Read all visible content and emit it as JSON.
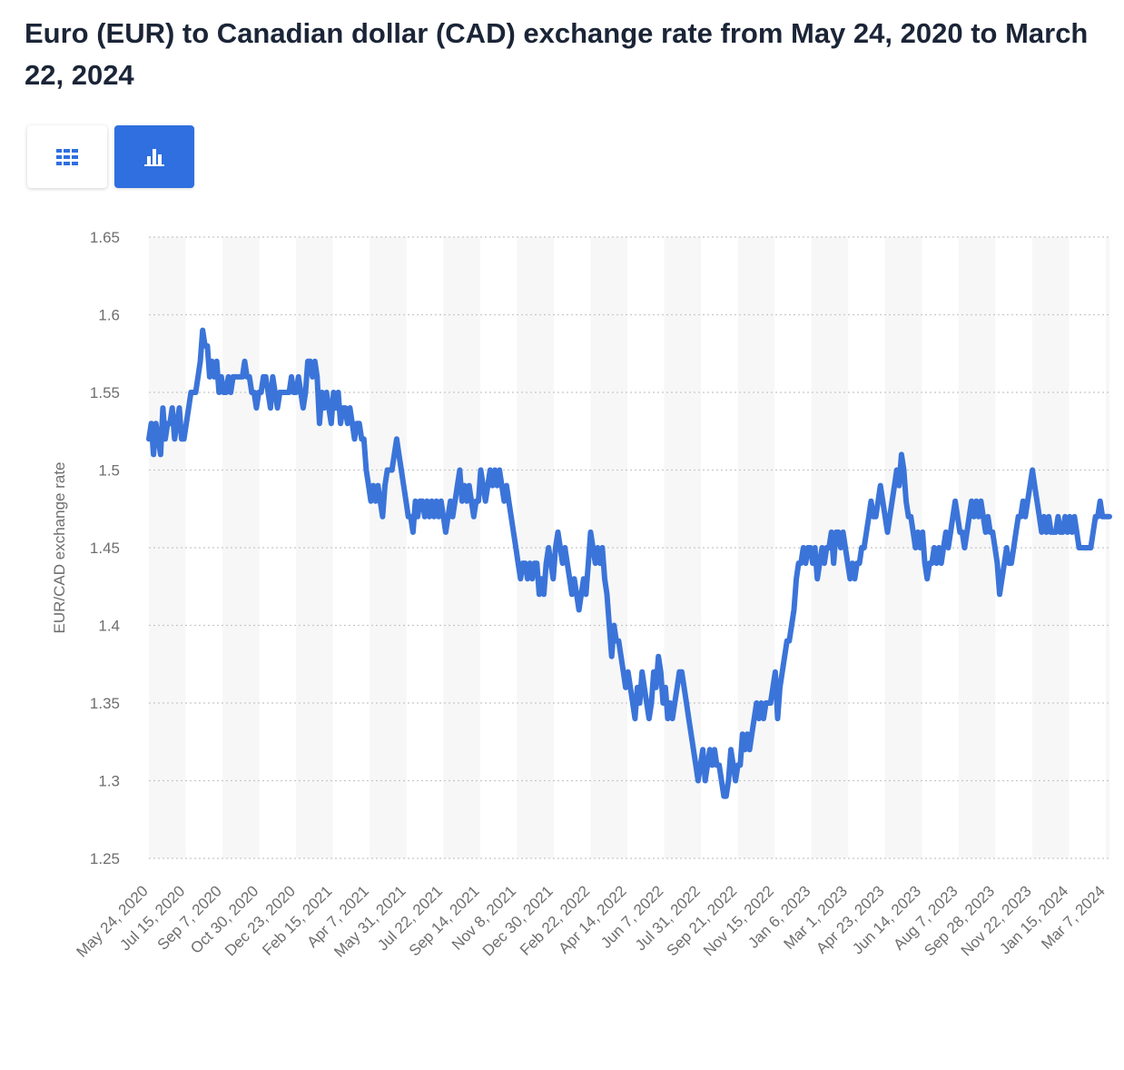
{
  "header": {
    "title": "Euro (EUR) to Canadian dollar (CAD) exchange rate from May 24, 2020 to March 22, 2024"
  },
  "toolbar": {
    "table_button_icon": "table-grid-icon",
    "chart_button_icon": "bar-chart-icon",
    "active_color": "#2f6fdf"
  },
  "chart_data": {
    "type": "line",
    "title": "Euro (EUR) to Canadian dollar (CAD) exchange rate from May 24, 2020 to March 22, 2024",
    "xlabel": "",
    "ylabel": "EUR/CAD exchange rate",
    "ylim": [
      1.25,
      1.65
    ],
    "yticks": [
      "1.25",
      "1.3",
      "1.35",
      "1.4",
      "1.45",
      "1.5",
      "1.55",
      "1.6",
      "1.65"
    ],
    "xticks": [
      "May 24, 2020",
      "Jul 15, 2020",
      "Sep 7, 2020",
      "Oct 30, 2020",
      "Dec 23, 2020",
      "Feb 15, 2021",
      "Apr 7, 2021",
      "May 31, 2021",
      "Jul 22, 2021",
      "Sep 14, 2021",
      "Nov 8, 2021",
      "Dec 30, 2021",
      "Feb 22, 2022",
      "Apr 14, 2022",
      "Jun 7, 2022",
      "Jul 31, 2022",
      "Sep 21, 2022",
      "Nov 15, 2022",
      "Jan 6, 2023",
      "Mar 1, 2023",
      "Apr 23, 2023",
      "Jun 14, 2023",
      "Aug 7, 2023",
      "Sep 28, 2023",
      "Nov 22, 2023",
      "Jan 15, 2024",
      "Mar 7, 2024"
    ],
    "grid": true,
    "line_color": "#3b74d9",
    "series": [
      {
        "name": "EUR/CAD exchange rate",
        "values": [
          1.52,
          1.53,
          1.51,
          1.53,
          1.52,
          1.51,
          1.54,
          1.52,
          1.53,
          1.53,
          1.54,
          1.52,
          1.53,
          1.54,
          1.52,
          1.52,
          1.53,
          1.54,
          1.55,
          1.55,
          1.55,
          1.56,
          1.57,
          1.59,
          1.58,
          1.58,
          1.56,
          1.57,
          1.56,
          1.57,
          1.55,
          1.56,
          1.55,
          1.55,
          1.56,
          1.55,
          1.56,
          1.56,
          1.56,
          1.56,
          1.56,
          1.57,
          1.56,
          1.56,
          1.55,
          1.55,
          1.54,
          1.55,
          1.55,
          1.56,
          1.56,
          1.55,
          1.54,
          1.56,
          1.55,
          1.54,
          1.55,
          1.55,
          1.55,
          1.55,
          1.55,
          1.56,
          1.55,
          1.55,
          1.56,
          1.55,
          1.54,
          1.55,
          1.57,
          1.57,
          1.56,
          1.57,
          1.56,
          1.53,
          1.55,
          1.54,
          1.55,
          1.54,
          1.53,
          1.55,
          1.54,
          1.55,
          1.53,
          1.54,
          1.54,
          1.53,
          1.54,
          1.53,
          1.52,
          1.53,
          1.53,
          1.52,
          1.52,
          1.5,
          1.49,
          1.48,
          1.49,
          1.48,
          1.49,
          1.48,
          1.47,
          1.49,
          1.5,
          1.5,
          1.5,
          1.51,
          1.52,
          1.51,
          1.5,
          1.49,
          1.48,
          1.47,
          1.47,
          1.46,
          1.48,
          1.47,
          1.48,
          1.48,
          1.47,
          1.48,
          1.47,
          1.48,
          1.47,
          1.48,
          1.47,
          1.48,
          1.47,
          1.46,
          1.47,
          1.48,
          1.47,
          1.48,
          1.49,
          1.5,
          1.48,
          1.49,
          1.48,
          1.49,
          1.48,
          1.47,
          1.48,
          1.48,
          1.5,
          1.49,
          1.48,
          1.49,
          1.5,
          1.49,
          1.5,
          1.49,
          1.5,
          1.49,
          1.48,
          1.49,
          1.48,
          1.47,
          1.46,
          1.45,
          1.44,
          1.43,
          1.44,
          1.44,
          1.43,
          1.44,
          1.43,
          1.44,
          1.44,
          1.42,
          1.43,
          1.42,
          1.44,
          1.45,
          1.44,
          1.43,
          1.45,
          1.46,
          1.45,
          1.44,
          1.45,
          1.44,
          1.43,
          1.42,
          1.43,
          1.42,
          1.41,
          1.42,
          1.43,
          1.42,
          1.44,
          1.46,
          1.45,
          1.44,
          1.45,
          1.44,
          1.45,
          1.43,
          1.42,
          1.4,
          1.38,
          1.4,
          1.39,
          1.39,
          1.38,
          1.37,
          1.36,
          1.37,
          1.36,
          1.35,
          1.34,
          1.36,
          1.35,
          1.37,
          1.36,
          1.35,
          1.34,
          1.35,
          1.37,
          1.36,
          1.38,
          1.37,
          1.35,
          1.36,
          1.34,
          1.35,
          1.34,
          1.35,
          1.36,
          1.37,
          1.37,
          1.36,
          1.35,
          1.34,
          1.33,
          1.32,
          1.31,
          1.3,
          1.31,
          1.32,
          1.3,
          1.31,
          1.32,
          1.31,
          1.32,
          1.31,
          1.31,
          1.3,
          1.29,
          1.29,
          1.3,
          1.32,
          1.31,
          1.3,
          1.31,
          1.31,
          1.33,
          1.32,
          1.33,
          1.32,
          1.33,
          1.34,
          1.35,
          1.34,
          1.35,
          1.34,
          1.35,
          1.35,
          1.35,
          1.36,
          1.37,
          1.34,
          1.36,
          1.37,
          1.38,
          1.39,
          1.39,
          1.4,
          1.41,
          1.43,
          1.44,
          1.44,
          1.45,
          1.44,
          1.45,
          1.45,
          1.44,
          1.45,
          1.43,
          1.44,
          1.45,
          1.44,
          1.45,
          1.45,
          1.46,
          1.44,
          1.46,
          1.46,
          1.45,
          1.46,
          1.45,
          1.44,
          1.43,
          1.44,
          1.43,
          1.44,
          1.44,
          1.45,
          1.45,
          1.46,
          1.47,
          1.48,
          1.47,
          1.47,
          1.48,
          1.49,
          1.48,
          1.47,
          1.46,
          1.47,
          1.48,
          1.49,
          1.5,
          1.49,
          1.51,
          1.5,
          1.48,
          1.47,
          1.47,
          1.46,
          1.45,
          1.46,
          1.45,
          1.46,
          1.44,
          1.43,
          1.44,
          1.44,
          1.45,
          1.44,
          1.45,
          1.44,
          1.45,
          1.46,
          1.45,
          1.46,
          1.47,
          1.48,
          1.47,
          1.46,
          1.46,
          1.45,
          1.46,
          1.47,
          1.48,
          1.47,
          1.48,
          1.47,
          1.48,
          1.47,
          1.46,
          1.47,
          1.46,
          1.46,
          1.45,
          1.44,
          1.42,
          1.43,
          1.44,
          1.45,
          1.44,
          1.44,
          1.45,
          1.46,
          1.47,
          1.47,
          1.48,
          1.47,
          1.48,
          1.49,
          1.5,
          1.49,
          1.48,
          1.47,
          1.46,
          1.47,
          1.46,
          1.47,
          1.46,
          1.46,
          1.46,
          1.47,
          1.46,
          1.46,
          1.47,
          1.46,
          1.47,
          1.46,
          1.47,
          1.46,
          1.45,
          1.45,
          1.45,
          1.45,
          1.45,
          1.45,
          1.46,
          1.47,
          1.47,
          1.48,
          1.47,
          1.47,
          1.47,
          1.47
        ]
      }
    ]
  }
}
